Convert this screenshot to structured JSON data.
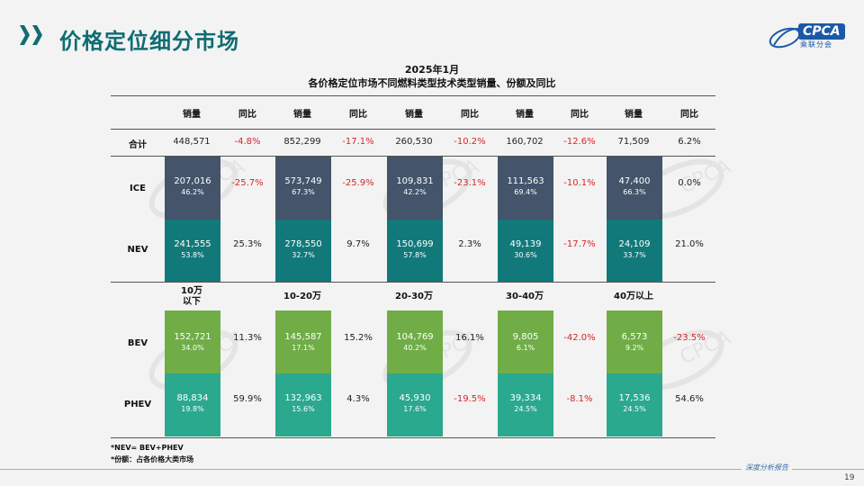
{
  "header": {
    "title": "价格定位细分市场",
    "logo_text": "CPCA",
    "logo_sub": "乘联分会"
  },
  "chart": {
    "title_line1": "2025年1月",
    "title_line2": "各价格定位市场不同燃料类型技术类型销量、份额及同比"
  },
  "table": {
    "col_headers": [
      "销量",
      "同比",
      "销量",
      "同比",
      "销量",
      "同比",
      "销量",
      "同比",
      "销量",
      "同比"
    ],
    "segments": [
      "10万\n以下",
      "10-20万",
      "20-30万",
      "30-40万",
      "40万以上"
    ],
    "rows": {
      "total": {
        "label": "合计",
        "cells": [
          {
            "sales": "448,571",
            "yoy": "-4.8%"
          },
          {
            "sales": "852,299",
            "yoy": "-17.1%"
          },
          {
            "sales": "260,530",
            "yoy": "-10.2%"
          },
          {
            "sales": "160,702",
            "yoy": "-12.6%"
          },
          {
            "sales": "71,509",
            "yoy": "6.2%"
          }
        ]
      },
      "ice": {
        "label": "ICE",
        "cells": [
          {
            "sales": "207,016",
            "share": "46.2%",
            "yoy": "-25.7%"
          },
          {
            "sales": "573,749",
            "share": "67.3%",
            "yoy": "-25.9%"
          },
          {
            "sales": "109,831",
            "share": "42.2%",
            "yoy": "-23.1%"
          },
          {
            "sales": "111,563",
            "share": "69.4%",
            "yoy": "-10.1%"
          },
          {
            "sales": "47,400",
            "share": "66.3%",
            "yoy": "0.0%"
          }
        ]
      },
      "nev": {
        "label": "NEV",
        "cells": [
          {
            "sales": "241,555",
            "share": "53.8%",
            "yoy": "25.3%"
          },
          {
            "sales": "278,550",
            "share": "32.7%",
            "yoy": "9.7%"
          },
          {
            "sales": "150,699",
            "share": "57.8%",
            "yoy": "2.3%"
          },
          {
            "sales": "49,139",
            "share": "30.6%",
            "yoy": "-17.7%"
          },
          {
            "sales": "24,109",
            "share": "33.7%",
            "yoy": "21.0%"
          }
        ]
      },
      "bev": {
        "label": "BEV",
        "cells": [
          {
            "sales": "152,721",
            "share": "34.0%",
            "yoy": "11.3%"
          },
          {
            "sales": "145,587",
            "share": "17.1%",
            "yoy": "15.2%"
          },
          {
            "sales": "104,769",
            "share": "40.2%",
            "yoy": "16.1%"
          },
          {
            "sales": "9,805",
            "share": "6.1%",
            "yoy": "-42.0%"
          },
          {
            "sales": "6,573",
            "share": "9.2%",
            "yoy": "-23.5%"
          }
        ]
      },
      "phev": {
        "label": "PHEV",
        "cells": [
          {
            "sales": "88,834",
            "share": "19.8%",
            "yoy": "59.9%"
          },
          {
            "sales": "132,963",
            "share": "15.6%",
            "yoy": "4.3%"
          },
          {
            "sales": "45,930",
            "share": "17.6%",
            "yoy": "-19.5%"
          },
          {
            "sales": "39,334",
            "share": "24.5%",
            "yoy": "-8.1%"
          },
          {
            "sales": "17,536",
            "share": "24.5%",
            "yoy": "54.6%"
          }
        ]
      }
    }
  },
  "notes": {
    "line1": "*NEV= BEV+PHEV",
    "line2": "*份额：占各价格大类市场"
  },
  "footer": {
    "report_label": "深度分析报告",
    "page_number": "19"
  },
  "colors": {
    "title_teal": "#0f6d73",
    "ice": "#44546a",
    "nev": "#12797a",
    "bev": "#70ad47",
    "phev": "#2aa98f",
    "negative": "#d6262b"
  }
}
